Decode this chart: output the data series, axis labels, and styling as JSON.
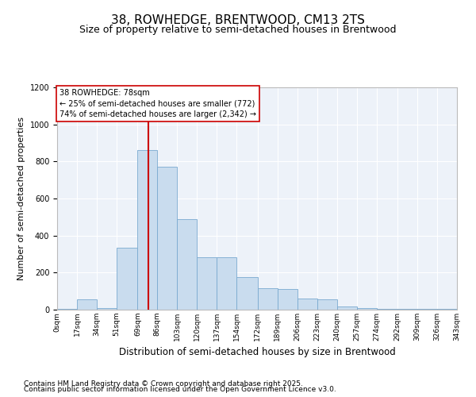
{
  "title": "38, ROWHEDGE, BRENTWOOD, CM13 2TS",
  "subtitle": "Size of property relative to semi-detached houses in Brentwood",
  "xlabel": "Distribution of semi-detached houses by size in Brentwood",
  "ylabel": "Number of semi-detached properties",
  "footnote1": "Contains HM Land Registry data © Crown copyright and database right 2025.",
  "footnote2": "Contains public sector information licensed under the Open Government Licence v3.0.",
  "annotation_title": "38 ROWHEDGE: 78sqm",
  "annotation_line1": "← 25% of semi-detached houses are smaller (772)",
  "annotation_line2": "74% of semi-detached houses are larger (2,342) →",
  "property_size": 78,
  "bin_edges": [
    0,
    17,
    34,
    51,
    69,
    86,
    103,
    120,
    137,
    154,
    172,
    189,
    206,
    223,
    240,
    257,
    274,
    292,
    309,
    326,
    343
  ],
  "bar_heights": [
    3,
    55,
    8,
    335,
    860,
    770,
    490,
    285,
    285,
    175,
    115,
    110,
    60,
    55,
    18,
    10,
    5,
    5,
    5,
    3
  ],
  "bar_color": "#c9dcee",
  "bar_edge_color": "#7aaad0",
  "line_color": "#cc0000",
  "background_color": "#edf2f9",
  "ylim": [
    0,
    1200
  ],
  "yticks": [
    0,
    200,
    400,
    600,
    800,
    1000,
    1200
  ],
  "grid_color": "#ffffff",
  "title_fontsize": 11,
  "subtitle_fontsize": 9,
  "ylabel_fontsize": 8,
  "xlabel_fontsize": 8.5,
  "tick_fontsize": 7,
  "footnote_fontsize": 6.5
}
